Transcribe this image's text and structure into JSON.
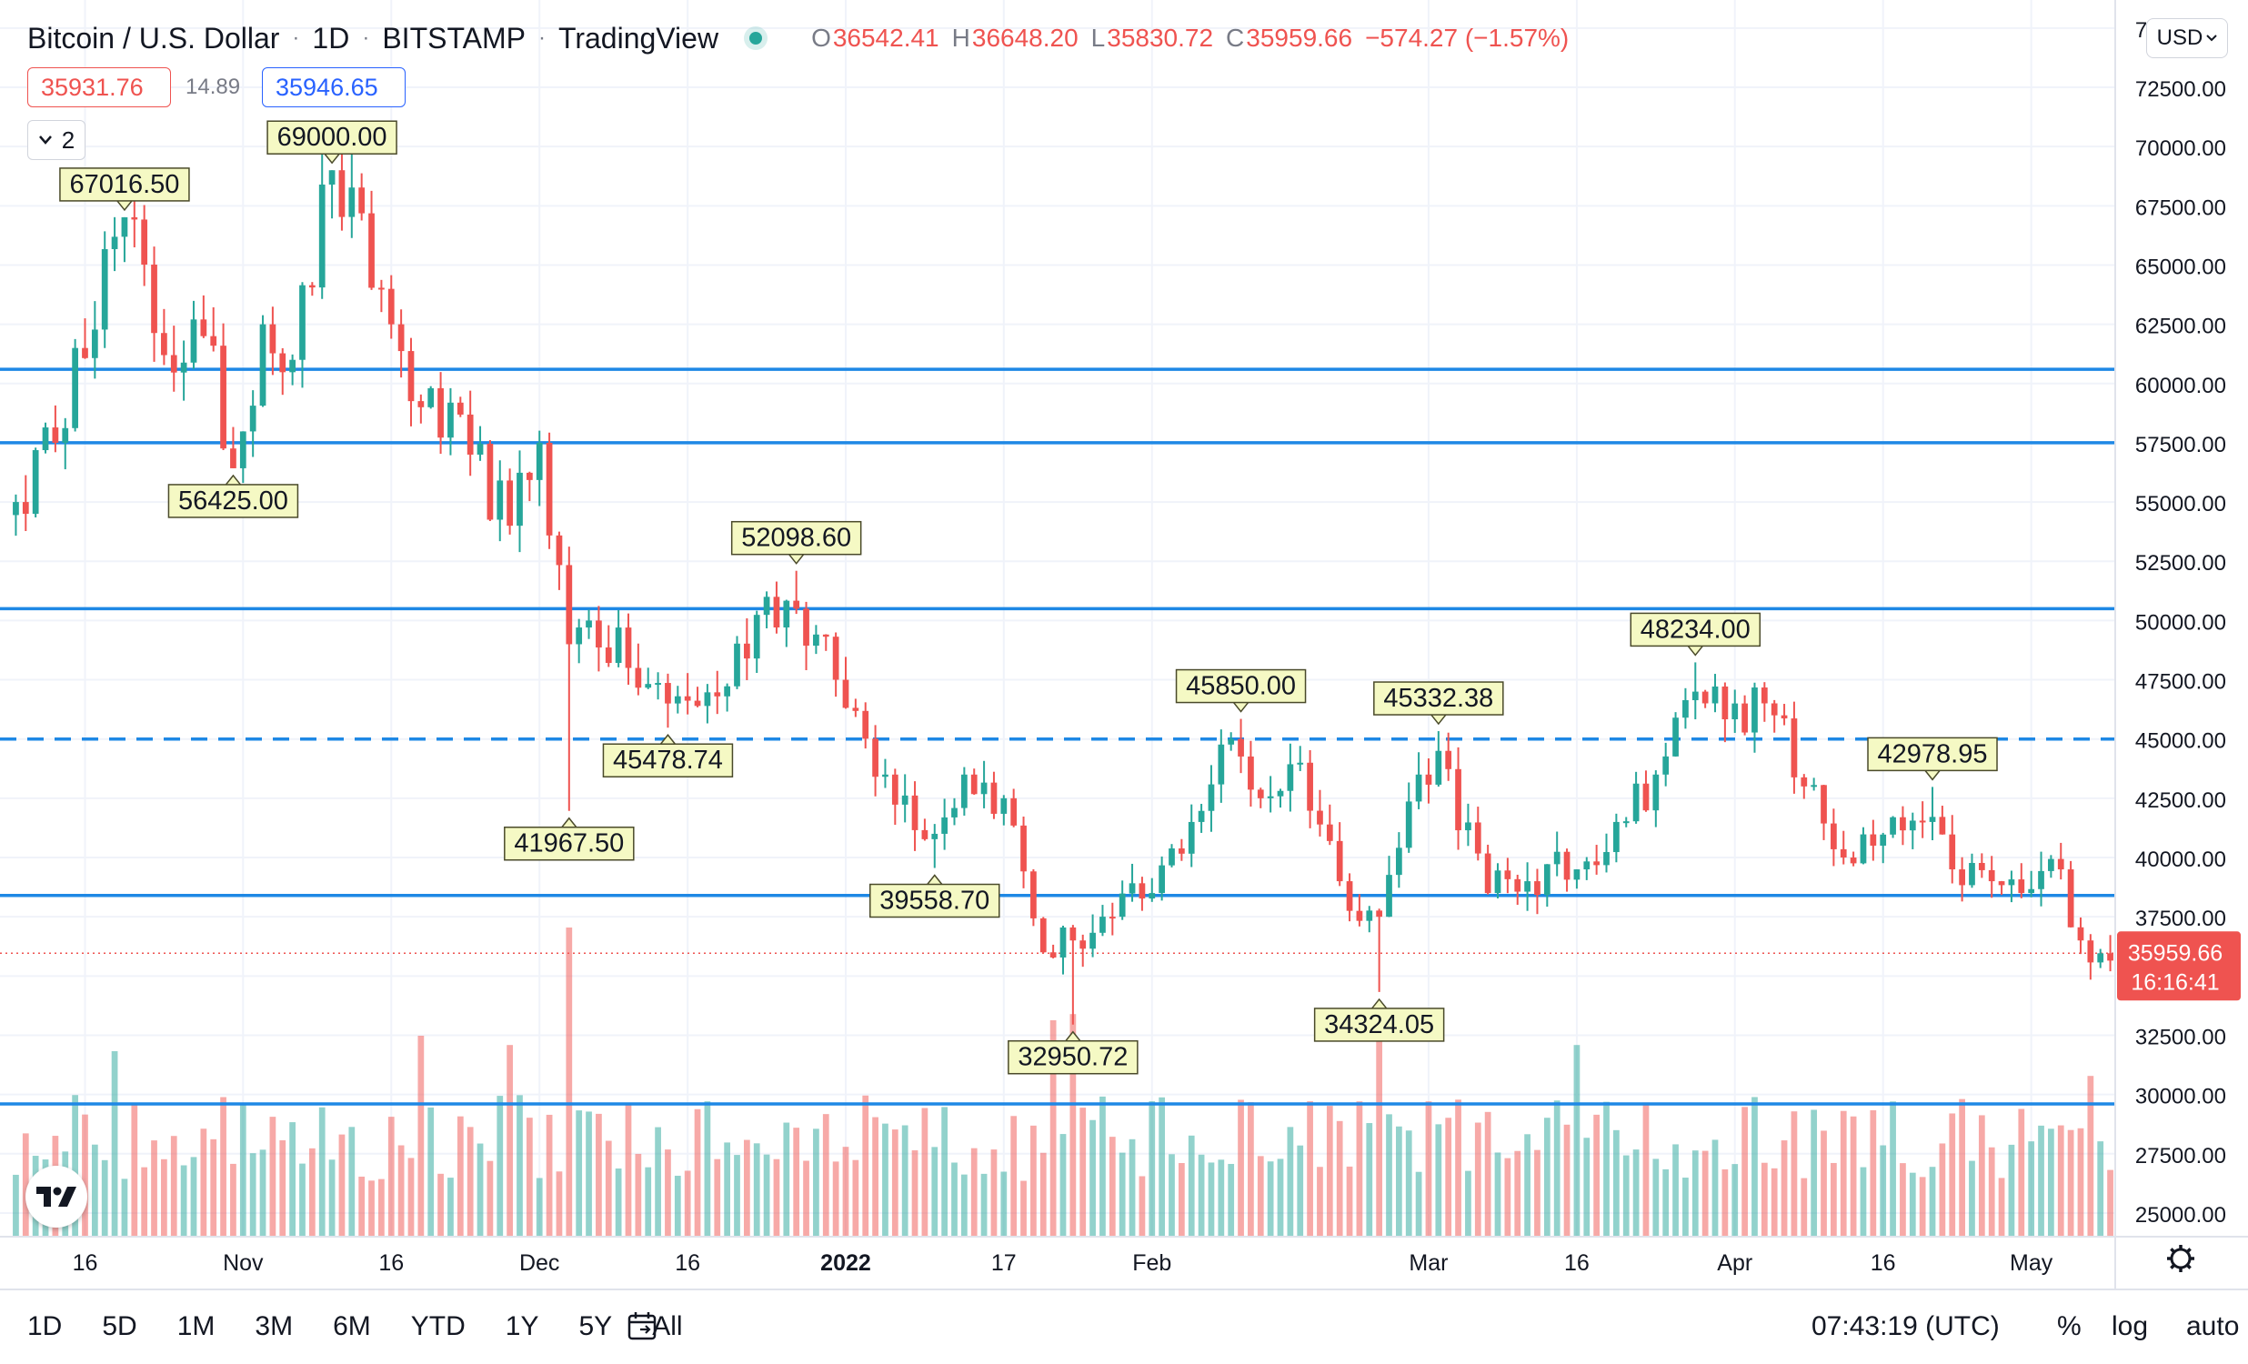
{
  "header": {
    "symbol": "Bitcoin / U.S. Dollar",
    "interval": "1D",
    "exchange": "BITSTAMP",
    "source": "TradingView",
    "ohlc": {
      "o_label": "O",
      "o": "36542.41",
      "h_label": "H",
      "h": "36648.20",
      "l_label": "L",
      "l": "35830.72",
      "c_label": "C",
      "c": "35959.66",
      "change": "−574.27 (−1.57%)"
    },
    "bid": "35931.76",
    "spread": "14.89",
    "ask": "35946.65",
    "collapse_label": "2",
    "currency": "USD"
  },
  "colors": {
    "up": "#26a69a",
    "down": "#ef5350",
    "line": "#2962ff",
    "level": "#1e88e5",
    "grid": "#f0f3fa",
    "text": "#131722",
    "muted": "#787b86",
    "label_bg": "#f5f9c4"
  },
  "chart_data": {
    "type": "candlestick",
    "y_axis": {
      "min": 24000,
      "max": 75800,
      "ticks": [
        "25000.00",
        "27500.00",
        "30000.00",
        "32500.00",
        "35000.00",
        "37500.00",
        "40000.00",
        "42500.00",
        "45000.00",
        "47500.00",
        "50000.00",
        "52500.00",
        "55000.00",
        "57500.00",
        "60000.00",
        "62500.00",
        "65000.00",
        "67500.00",
        "70000.00",
        "72500.00",
        "75000.00"
      ]
    },
    "x_axis": {
      "start_date": "2021-10-09",
      "end_date": "2022-05-09",
      "ticks": [
        {
          "date": "2021-10-16",
          "label": "16"
        },
        {
          "date": "2021-11-01",
          "label": "Nov"
        },
        {
          "date": "2021-11-16",
          "label": "16"
        },
        {
          "date": "2021-12-01",
          "label": "Dec"
        },
        {
          "date": "2021-12-16",
          "label": "16"
        },
        {
          "date": "2022-01-01",
          "label": "2022"
        },
        {
          "date": "2022-01-17",
          "label": "17"
        },
        {
          "date": "2022-02-01",
          "label": "Feb"
        },
        {
          "date": "2022-03-01",
          "label": "Mar"
        },
        {
          "date": "2022-03-16",
          "label": "16"
        },
        {
          "date": "2022-04-01",
          "label": "Apr"
        },
        {
          "date": "2022-04-16",
          "label": "16"
        },
        {
          "date": "2022-05-01",
          "label": "May"
        }
      ]
    },
    "anchors": [
      [
        "2021-10-09",
        55000
      ],
      [
        "2021-10-13",
        57500
      ],
      [
        "2021-10-15",
        61500
      ],
      [
        "2021-10-20",
        67016.5
      ],
      [
        "2021-10-24",
        61200
      ],
      [
        "2021-10-28",
        62000
      ],
      [
        "2021-10-31",
        56425
      ],
      [
        "2021-11-03",
        62500
      ],
      [
        "2021-11-06",
        61000
      ],
      [
        "2021-11-10",
        69000
      ],
      [
        "2021-11-16",
        62500
      ],
      [
        "2021-11-19",
        59000
      ],
      [
        "2021-11-24",
        57000
      ],
      [
        "2021-11-28",
        54000
      ],
      [
        "2021-12-01",
        57500
      ],
      [
        "2021-12-04",
        49000
      ],
      [
        "2021-12-06",
        50000
      ],
      [
        "2021-12-10",
        48000
      ],
      [
        "2021-12-14",
        46500
      ],
      [
        "2021-12-19",
        46800
      ],
      [
        "2021-12-24",
        51000
      ],
      [
        "2021-12-27",
        50500
      ],
      [
        "2021-12-31",
        47500
      ],
      [
        "2022-01-05",
        43500
      ],
      [
        "2022-01-10",
        41000
      ],
      [
        "2022-01-13",
        43500
      ],
      [
        "2022-01-17",
        42500
      ],
      [
        "2022-01-21",
        36000
      ],
      [
        "2022-01-24",
        36500
      ],
      [
        "2022-01-28",
        37500
      ],
      [
        "2022-02-01",
        38500
      ],
      [
        "2022-02-05",
        41500
      ],
      [
        "2022-02-09",
        45000
      ],
      [
        "2022-02-12",
        42500
      ],
      [
        "2022-02-16",
        44000
      ],
      [
        "2022-02-20",
        39000
      ],
      [
        "2022-02-24",
        37500
      ],
      [
        "2022-02-28",
        43500
      ],
      [
        "2022-03-02",
        44500
      ],
      [
        "2022-03-07",
        38500
      ],
      [
        "2022-03-11",
        39000
      ],
      [
        "2022-03-16",
        39500
      ],
      [
        "2022-03-20",
        41500
      ],
      [
        "2022-03-24",
        43500
      ],
      [
        "2022-03-28",
        47000
      ],
      [
        "2022-04-01",
        46500
      ],
      [
        "2022-04-05",
        46000
      ],
      [
        "2022-04-08",
        43000
      ],
      [
        "2022-04-12",
        40000
      ],
      [
        "2022-04-15",
        40500
      ],
      [
        "2022-04-20",
        41500
      ],
      [
        "2022-04-23",
        39500
      ],
      [
        "2022-04-27",
        39000
      ],
      [
        "2022-04-30",
        38500
      ],
      [
        "2022-05-04",
        39500
      ],
      [
        "2022-05-06",
        36500
      ],
      [
        "2022-05-08",
        35959.66
      ]
    ],
    "price_labels": [
      {
        "date": "2021-10-20",
        "price": 67016.5,
        "text": "67016.50",
        "pos": "above"
      },
      {
        "date": "2021-11-10",
        "price": 69000,
        "text": "69000.00",
        "pos": "above"
      },
      {
        "date": "2021-10-31",
        "price": 56425,
        "text": "56425.00",
        "pos": "below"
      },
      {
        "date": "2021-12-04",
        "price": 41967.5,
        "text": "41967.50",
        "pos": "below"
      },
      {
        "date": "2021-12-14",
        "price": 45478.74,
        "text": "45478.74",
        "pos": "below"
      },
      {
        "date": "2021-12-27",
        "price": 52098.6,
        "text": "52098.60",
        "pos": "above"
      },
      {
        "date": "2022-01-10",
        "price": 39558.7,
        "text": "39558.70",
        "pos": "below"
      },
      {
        "date": "2022-01-24",
        "price": 32950.72,
        "text": "32950.72",
        "pos": "below"
      },
      {
        "date": "2022-02-10",
        "price": 45850,
        "text": "45850.00",
        "pos": "above"
      },
      {
        "date": "2022-02-24",
        "price": 34324.05,
        "text": "34324.05",
        "pos": "below"
      },
      {
        "date": "2022-03-02",
        "price": 45332.38,
        "text": "45332.38",
        "pos": "above"
      },
      {
        "date": "2022-03-28",
        "price": 48234,
        "text": "48234.00",
        "pos": "above"
      },
      {
        "date": "2022-04-21",
        "price": 42978.95,
        "text": "42978.95",
        "pos": "above"
      }
    ],
    "levels": [
      {
        "price": 60600,
        "style": "solid"
      },
      {
        "price": 57500,
        "style": "solid"
      },
      {
        "price": 50500,
        "style": "solid"
      },
      {
        "price": 45000,
        "style": "dashed"
      },
      {
        "price": 38400,
        "style": "solid"
      },
      {
        "price": 29600,
        "style": "solid"
      }
    ],
    "last_price": {
      "price": 35959.66,
      "text": "35959.66",
      "countdown": "16:16:41"
    },
    "volume_spikes": [
      [
        "2021-12-04",
        1.0
      ],
      [
        "2021-10-19",
        0.6
      ],
      [
        "2021-11-19",
        0.65
      ],
      [
        "2021-11-28",
        0.62
      ],
      [
        "2022-01-22",
        0.7
      ],
      [
        "2022-01-24",
        0.72
      ],
      [
        "2022-02-24",
        0.66
      ],
      [
        "2022-03-16",
        0.62
      ],
      [
        "2022-05-07",
        0.52
      ]
    ]
  },
  "bottombar": {
    "ranges": [
      "1D",
      "5D",
      "1M",
      "3M",
      "6M",
      "YTD",
      "1Y",
      "5Y",
      "All"
    ],
    "time": "07:43:19 (UTC)",
    "percent": "%",
    "log": "log",
    "auto": "auto"
  }
}
